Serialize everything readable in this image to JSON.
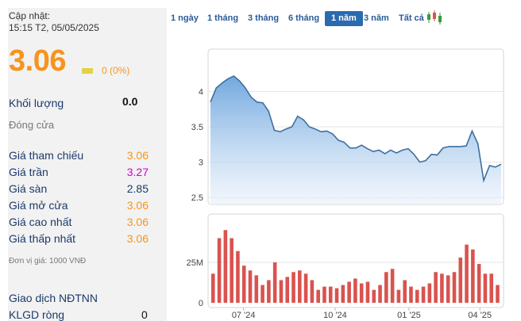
{
  "summary": {
    "update_label": "Cập nhật:",
    "update_time": "15:15 T2, 05/05/2025",
    "price": "3.06",
    "change": "0 (0%)",
    "volume_label": "Khối lượng",
    "volume_value": "0.0",
    "status": "Đóng cửa",
    "unit_note": "Đơn vị giá: 1000 VNĐ"
  },
  "price_rows": [
    {
      "label": "Giá tham chiếu",
      "value": "3.06",
      "color": "#f7941d"
    },
    {
      "label": "Giá trần",
      "value": "3.27",
      "color": "#d200d2"
    },
    {
      "label": "Giá sàn",
      "value": "2.85",
      "color": "#1b3a6b"
    },
    {
      "label": "Giá mở cửa",
      "value": "3.06",
      "color": "#f7941d"
    },
    {
      "label": "Giá cao nhất",
      "value": "3.06",
      "color": "#f7941d"
    },
    {
      "label": "Giá thấp nhất",
      "value": "3.06",
      "color": "#f7941d"
    }
  ],
  "foreign": {
    "title": "Giao dịch NĐTNN",
    "net_label": "KLGD ròng",
    "net_value": "0"
  },
  "range_tabs": [
    {
      "label": "1 ngày",
      "active": false
    },
    {
      "label": "1 tháng",
      "active": false
    },
    {
      "label": "3 tháng",
      "active": false
    },
    {
      "label": "6 tháng",
      "active": false
    },
    {
      "label": "1 năm",
      "active": true
    },
    {
      "label": "3 năm",
      "active": false
    },
    {
      "label": "Tất cả",
      "active": false
    }
  ],
  "colors": {
    "accent": "#2a6bb0",
    "line": "#4a86c8",
    "volume_bar": "#d9534f",
    "price_orange": "#f7941d"
  },
  "chart_data": {
    "type": "line",
    "price": {
      "ylim": [
        2.4,
        4.6
      ],
      "y_ticks": [
        2.5,
        3,
        3.5,
        4
      ],
      "y_tick_labels": [
        "2.5",
        "3",
        "3.5",
        "4"
      ],
      "points": [
        [
          0,
          3.85
        ],
        [
          1,
          4.05
        ],
        [
          2,
          4.12
        ],
        [
          3,
          4.18
        ],
        [
          4,
          4.22
        ],
        [
          5,
          4.15
        ],
        [
          6,
          4.05
        ],
        [
          7,
          3.92
        ],
        [
          8,
          3.85
        ],
        [
          9,
          3.84
        ],
        [
          10,
          3.72
        ],
        [
          11,
          3.45
        ],
        [
          12,
          3.43
        ],
        [
          13,
          3.47
        ],
        [
          14,
          3.5
        ],
        [
          15,
          3.65
        ],
        [
          16,
          3.6
        ],
        [
          17,
          3.5
        ],
        [
          18,
          3.47
        ],
        [
          19,
          3.43
        ],
        [
          20,
          3.44
        ],
        [
          21,
          3.4
        ],
        [
          22,
          3.31
        ],
        [
          23,
          3.28
        ],
        [
          24,
          3.2
        ],
        [
          25,
          3.2
        ],
        [
          26,
          3.24
        ],
        [
          27,
          3.19
        ],
        [
          28,
          3.15
        ],
        [
          29,
          3.17
        ],
        [
          30,
          3.12
        ],
        [
          31,
          3.17
        ],
        [
          32,
          3.13
        ],
        [
          33,
          3.17
        ],
        [
          34,
          3.19
        ],
        [
          35,
          3.11
        ],
        [
          36,
          3.0
        ],
        [
          37,
          3.02
        ],
        [
          38,
          3.11
        ],
        [
          39,
          3.1
        ],
        [
          40,
          3.2
        ],
        [
          41,
          3.22
        ],
        [
          42,
          3.22
        ],
        [
          43,
          3.22
        ],
        [
          44,
          3.23
        ],
        [
          45,
          3.44
        ],
        [
          46,
          3.26
        ],
        [
          47,
          2.74
        ],
        [
          48,
          2.95
        ],
        [
          49,
          2.93
        ],
        [
          50,
          2.97
        ]
      ]
    },
    "volume": {
      "y_ticks": [
        0,
        25
      ],
      "y_tick_labels": [
        "0",
        "25M"
      ],
      "ymax": 52,
      "values": [
        18,
        40,
        45,
        40,
        32,
        23,
        20,
        17,
        11,
        14,
        25,
        14,
        16,
        19,
        20,
        18,
        14,
        8,
        10,
        10,
        9,
        11,
        13,
        15,
        12,
        13,
        8,
        11,
        19,
        21,
        8,
        14,
        10,
        8,
        10,
        12,
        19,
        18,
        17,
        19,
        28,
        36,
        33,
        24,
        18,
        18,
        11
      ]
    },
    "x_ticks": [
      {
        "label": "07 '24",
        "pos": 0.12
      },
      {
        "label": "10 '24",
        "pos": 0.43
      },
      {
        "label": "01 '25",
        "pos": 0.68
      },
      {
        "label": "04 '25",
        "pos": 0.92
      }
    ]
  }
}
